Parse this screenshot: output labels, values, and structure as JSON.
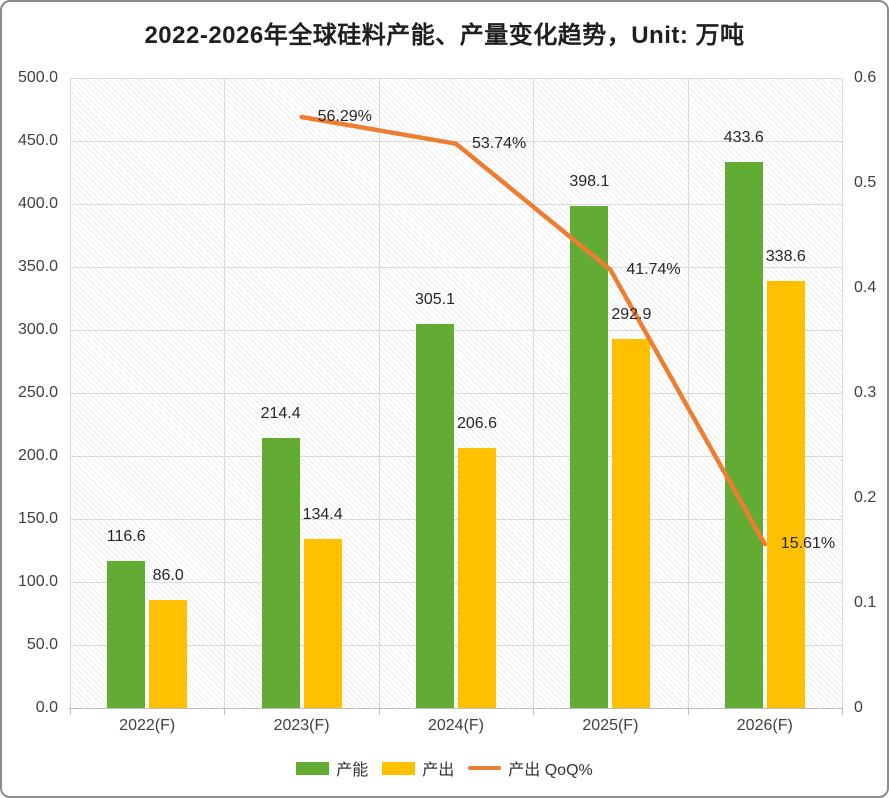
{
  "chart_data": {
    "type": "bar+line",
    "title": "2022-2026年全球硅料产能、产量变化趋势，Unit: 万吨",
    "categories": [
      "2022(F)",
      "2023(F)",
      "2024(F)",
      "2025(F)",
      "2026(F)"
    ],
    "bar_series": [
      {
        "name": "产能",
        "color": "#63AC33",
        "values": [
          116.6,
          214.4,
          305.1,
          398.1,
          433.6
        ],
        "labels": [
          "116.6",
          "214.4",
          "305.1",
          "398.1",
          "433.6"
        ]
      },
      {
        "name": "产出",
        "color": "#FFC000",
        "values": [
          86.0,
          134.4,
          206.6,
          292.9,
          338.6
        ],
        "labels": [
          "86.0",
          "134.4",
          "206.6",
          "292.9",
          "338.6"
        ]
      }
    ],
    "line_series": {
      "name": "产出 QoQ%",
      "color": "#ED7D31",
      "values": [
        null,
        0.5629,
        0.5374,
        0.4174,
        0.1561
      ],
      "labels": [
        null,
        "56.29%",
        "53.74%",
        "41.74%",
        "15.61%"
      ]
    },
    "left_axis": {
      "min": 0,
      "max": 500,
      "step": 50,
      "labels": [
        "0.0",
        "50.0",
        "100.0",
        "150.0",
        "200.0",
        "250.0",
        "300.0",
        "350.0",
        "400.0",
        "450.0",
        "500.0"
      ]
    },
    "right_axis": {
      "min": 0,
      "max": 0.6,
      "step": 0.1,
      "labels": [
        "0",
        "0.1",
        "0.2",
        "0.3",
        "0.4",
        "0.5",
        "0.6"
      ]
    },
    "legend_items": [
      {
        "label": "产能",
        "swatch": "rect",
        "color": "#63AC33"
      },
      {
        "label": "产出",
        "swatch": "rect",
        "color": "#FFC000"
      },
      {
        "label": "产出 QoQ%",
        "swatch": "line",
        "color": "#ED7D31"
      }
    ],
    "grid": true,
    "legend_position": "bottom"
  }
}
